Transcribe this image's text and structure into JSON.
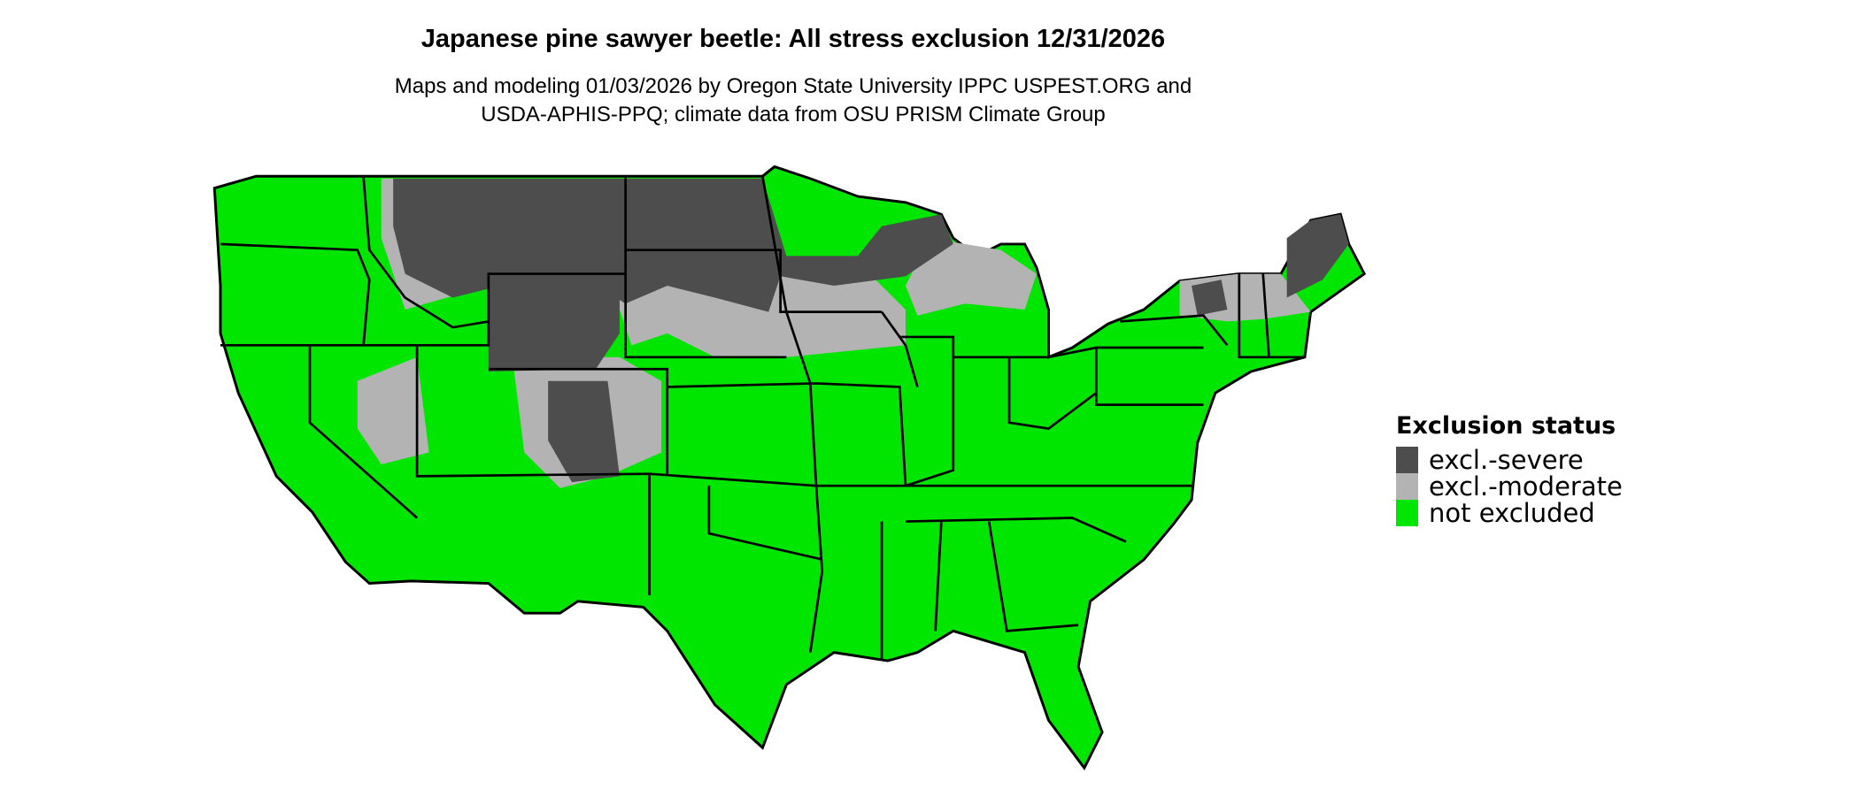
{
  "title": "Japanese pine sawyer beetle: All stress exclusion 12/31/2026",
  "subtitle_lines": [
    "Maps and modeling 01/03/2026 by Oregon State University IPPC USPEST.ORG and",
    "USDA-APHIS-PPQ; climate data from OSU PRISM Climate Group"
  ],
  "legend": {
    "title": "Exclusion status",
    "items": [
      {
        "label": "excl.-severe",
        "color": "#4d4d4d"
      },
      {
        "label": "excl.-moderate",
        "color": "#b3b3b3"
      },
      {
        "label": "not excluded",
        "color": "#00e600"
      }
    ]
  },
  "map": {
    "region": "Contiguous United States",
    "state_border_color": "#000000"
  }
}
